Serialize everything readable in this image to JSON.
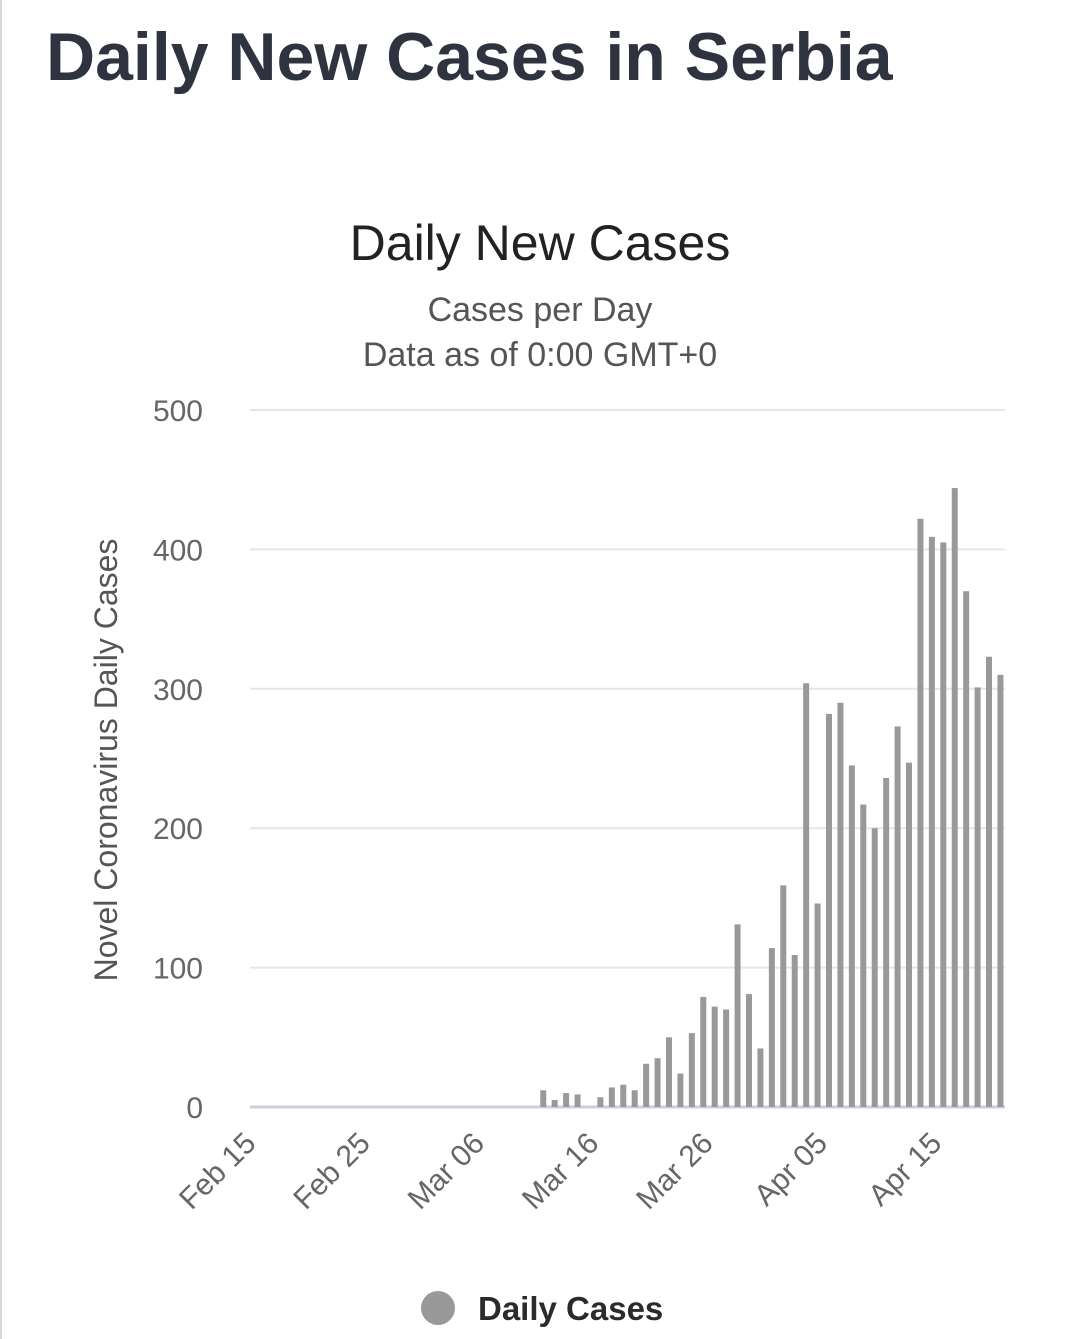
{
  "page": {
    "title": "Daily New Cases in Serbia"
  },
  "chart_data": {
    "type": "bar",
    "title": "Daily New Cases",
    "subtitle": "Cases per Day",
    "subtitle2": "Data as of 0:00 GMT+0",
    "xlabel": "",
    "ylabel": "Novel Coronavirus Daily Cases",
    "ylim": [
      0,
      500
    ],
    "yticks": [
      0,
      100,
      200,
      300,
      400,
      500
    ],
    "xtick_labels": [
      {
        "label": "Feb 15",
        "index": 0
      },
      {
        "label": "Feb 25",
        "index": 10
      },
      {
        "label": "Mar 06",
        "index": 20
      },
      {
        "label": "Mar 16",
        "index": 30
      },
      {
        "label": "Mar 26",
        "index": 40
      },
      {
        "label": "Apr 05",
        "index": 50
      },
      {
        "label": "Apr 15",
        "index": 60
      }
    ],
    "series": [
      {
        "name": "Daily Cases",
        "color": "#999999",
        "values": [
          0,
          0,
          0,
          0,
          0,
          0,
          0,
          0,
          0,
          0,
          0,
          0,
          0,
          0,
          0,
          0,
          0,
          0,
          0,
          0,
          0,
          0,
          0,
          0,
          0,
          12,
          5,
          10,
          9,
          0,
          7,
          14,
          16,
          12,
          31,
          35,
          50,
          24,
          53,
          79,
          72,
          70,
          131,
          81,
          42,
          114,
          159,
          109,
          304,
          146,
          282,
          290,
          245,
          217,
          200,
          236,
          273,
          247,
          422,
          409,
          405,
          444,
          370,
          301,
          323,
          310
        ]
      }
    ],
    "grid": true,
    "legend_position": "bottom-center"
  }
}
